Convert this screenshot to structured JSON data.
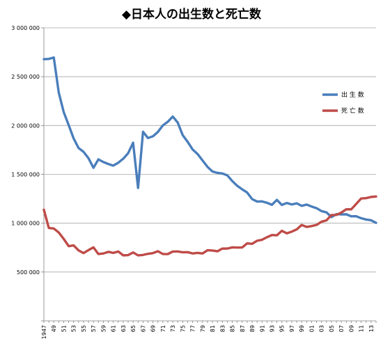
{
  "chart_data": {
    "type": "line",
    "title": "◆日本人の出生数と死亡数",
    "xlabel": "",
    "ylabel": "",
    "ylim": [
      0,
      3000000
    ],
    "yticks": [
      0,
      500000,
      1000000,
      1500000,
      2000000,
      2500000,
      3000000
    ],
    "ytick_labels": [
      "",
      "500 000",
      "1 000 000",
      "1 500 000",
      "2 000 000",
      "2 500 000",
      "3 000 000"
    ],
    "grid": true,
    "legend_position": "right",
    "x_labeled_years": [
      1947,
      1949,
      1951,
      1953,
      1955,
      1957,
      1959,
      1961,
      1963,
      1965,
      1967,
      1969,
      1971,
      1973,
      1975,
      1977,
      1979,
      1981,
      1983,
      1985,
      1987,
      1989,
      1991,
      1993,
      1995,
      1997,
      1999,
      2001,
      2003,
      2005,
      2007,
      2009,
      2011,
      2013
    ],
    "x_tick_labels": [
      "1947",
      "49",
      "51",
      "53",
      "55",
      "57",
      "59",
      "61",
      "63",
      "65",
      "67",
      "69",
      "71",
      "73",
      "75",
      "77",
      "79",
      "81",
      "83",
      "85",
      "87",
      "89",
      "91",
      "93",
      "95",
      "97",
      "99",
      "01",
      "03",
      "05",
      "07",
      "09",
      "11",
      "13"
    ],
    "x": [
      1947,
      1948,
      1949,
      1950,
      1951,
      1952,
      1953,
      1954,
      1955,
      1956,
      1957,
      1958,
      1959,
      1960,
      1961,
      1962,
      1963,
      1964,
      1965,
      1966,
      1967,
      1968,
      1969,
      1970,
      1971,
      1972,
      1973,
      1974,
      1975,
      1976,
      1977,
      1978,
      1979,
      1980,
      1981,
      1982,
      1983,
      1984,
      1985,
      1986,
      1987,
      1988,
      1989,
      1990,
      1991,
      1992,
      1993,
      1994,
      1995,
      1996,
      1997,
      1998,
      1999,
      2000,
      2001,
      2002,
      2003,
      2004,
      2005,
      2006,
      2007,
      2008,
      2009,
      2010,
      2011,
      2012,
      2013,
      2014
    ],
    "series": [
      {
        "name": "出 生 数",
        "color": "#4a7ebb",
        "values": [
          2678792,
          2681624,
          2696638,
          2337507,
          2137689,
          2005162,
          1868040,
          1769580,
          1730692,
          1665278,
          1566713,
          1653469,
          1626088,
          1606041,
          1589372,
          1618616,
          1659521,
          1716761,
          1823697,
          1360974,
          1935647,
          1871839,
          1889815,
          1934239,
          2000973,
          2038682,
          2091983,
          2029989,
          1901440,
          1832617,
          1755100,
          1708643,
          1642580,
          1576889,
          1529455,
          1515392,
          1508687,
          1489780,
          1431577,
          1382946,
          1346658,
          1314006,
          1246802,
          1221585,
          1223245,
          1208989,
          1188282,
          1238328,
          1187064,
          1206555,
          1191665,
          1203147,
          1177669,
          1190547,
          1170662,
          1153855,
          1123610,
          1110721,
          1062530,
          1092674,
          1089818,
          1091156,
          1070035,
          1071304,
          1050806,
          1037231,
          1029816,
          1003532
        ]
      },
      {
        "name": "死 亡 数",
        "color": "#be4b48",
        "values": [
          1138238,
          950610,
          945444,
          904876,
          838998,
          765068,
          772547,
          721491,
          693523,
          724460,
          752445,
          684189,
          689959,
          706599,
          695644,
          710265,
          670770,
          673067,
          700438,
          670342,
          675006,
          686555,
          693787,
          712962,
          684521,
          683751,
          709416,
          710510,
          702275,
          703270,
          690074,
          695821,
          689664,
          722801,
          720262,
          711883,
          740038,
          740247,
          752283,
          750620,
          751172,
          793014,
          788594,
          820305,
          829797,
          856643,
          878532,
          875933,
          922139,
          896211,
          913402,
          936484,
          982031,
          961653,
          970331,
          982379,
          1014951,
          1028602,
          1083796,
          1084450,
          1108334,
          1142407,
          1141865,
          1197012,
          1253066,
          1256359,
          1268436,
          1273004
        ]
      }
    ]
  }
}
